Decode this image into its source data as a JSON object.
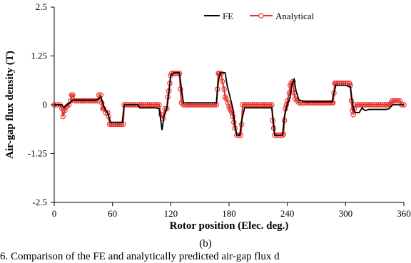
{
  "panel_label": "(b)",
  "caption": "6. Comparison of the FE and analytically predicted air-gap flux d",
  "chart_data": {
    "type": "line",
    "title": "",
    "xlabel": "Rotor position (Elec. deg.)",
    "ylabel": "Air-gap flux density (T)",
    "xlim": [
      0,
      360
    ],
    "ylim": [
      -2.5,
      2.5
    ],
    "xticks": [
      "0",
      "60",
      "120",
      "180",
      "240",
      "300",
      "360"
    ],
    "yticks": [
      "-2.5",
      "-1.25",
      "0",
      "1.25",
      "2.5"
    ],
    "grid": false,
    "legend_position": "top-right",
    "series": [
      {
        "name": "FE",
        "color": "#000000",
        "marker": "none",
        "points": [
          [
            0,
            0
          ],
          [
            8,
            0
          ],
          [
            10,
            -0.08
          ],
          [
            12,
            -0.02
          ],
          [
            16,
            0.05
          ],
          [
            19,
            0.12
          ],
          [
            22,
            0.12
          ],
          [
            27,
            0.12
          ],
          [
            31,
            0.12
          ],
          [
            35,
            0.12
          ],
          [
            39,
            0.12
          ],
          [
            43,
            0.12
          ],
          [
            46,
            0.15
          ],
          [
            48,
            0.2
          ],
          [
            50,
            0.05
          ],
          [
            52,
            -0.1
          ],
          [
            55,
            -0.2
          ],
          [
            58,
            -0.45
          ],
          [
            62,
            -0.45
          ],
          [
            66,
            -0.45
          ],
          [
            70,
            -0.45
          ],
          [
            72,
            0
          ],
          [
            78,
            0
          ],
          [
            82,
            0
          ],
          [
            86,
            0
          ],
          [
            88,
            -0.08
          ],
          [
            92,
            -0.08
          ],
          [
            96,
            -0.08
          ],
          [
            100,
            -0.08
          ],
          [
            104,
            -0.08
          ],
          [
            108,
            -0.1
          ],
          [
            110,
            -0.45
          ],
          [
            111,
            -0.65
          ],
          [
            113,
            -0.3
          ],
          [
            116,
            -0.1
          ],
          [
            118,
            0.3
          ],
          [
            120,
            0.75
          ],
          [
            123,
            0.82
          ],
          [
            126,
            0.82
          ],
          [
            129,
            0.82
          ],
          [
            131,
            0.4
          ],
          [
            133,
            0.05
          ],
          [
            138,
            0.05
          ],
          [
            145,
            0.05
          ],
          [
            152,
            0.05
          ],
          [
            160,
            0.05
          ],
          [
            167,
            0.05
          ],
          [
            169,
            0.6
          ],
          [
            171,
            0.82
          ],
          [
            176,
            0.82
          ],
          [
            178,
            0.5
          ],
          [
            181,
            0.2
          ],
          [
            184,
            -0.1
          ],
          [
            186,
            -0.5
          ],
          [
            188,
            -0.78
          ],
          [
            191,
            -0.78
          ],
          [
            193,
            -0.4
          ],
          [
            196,
            -0.08
          ],
          [
            203,
            -0.08
          ],
          [
            210,
            -0.08
          ],
          [
            217,
            -0.08
          ],
          [
            224,
            -0.08
          ],
          [
            226,
            -0.5
          ],
          [
            227,
            -0.78
          ],
          [
            233,
            -0.78
          ],
          [
            235,
            -0.78
          ],
          [
            237,
            -0.3
          ],
          [
            240,
            0
          ],
          [
            243,
            0.2
          ],
          [
            245,
            0.55
          ],
          [
            247,
            0.65
          ],
          [
            249,
            0.35
          ],
          [
            252,
            0.12
          ],
          [
            258,
            0.08
          ],
          [
            265,
            0.08
          ],
          [
            272,
            0.08
          ],
          [
            279,
            0.08
          ],
          [
            286,
            0.08
          ],
          [
            288,
            0.3
          ],
          [
            290,
            0.5
          ],
          [
            295,
            0.5
          ],
          [
            300,
            0.5
          ],
          [
            305,
            0.45
          ],
          [
            307,
            0.05
          ],
          [
            308,
            -0.1
          ],
          [
            310,
            -0.2
          ],
          [
            314,
            -0.2
          ],
          [
            317,
            -0.08
          ],
          [
            320,
            -0.15
          ],
          [
            324,
            -0.12
          ],
          [
            328,
            -0.12
          ],
          [
            333,
            -0.12
          ],
          [
            337,
            -0.12
          ],
          [
            341,
            -0.12
          ],
          [
            345,
            -0.1
          ],
          [
            348,
            0
          ],
          [
            352,
            0
          ],
          [
            356,
            0
          ],
          [
            360,
            0
          ]
        ]
      },
      {
        "name": "Analytical",
        "color": "#e8302a",
        "marker": "circle",
        "points": [
          [
            0,
            0
          ],
          [
            3,
            0
          ],
          [
            6,
            0
          ],
          [
            8,
            -0.1
          ],
          [
            9,
            -0.3
          ],
          [
            11,
            -0.15
          ],
          [
            13,
            -0.05
          ],
          [
            15,
            0
          ],
          [
            17,
            0.1
          ],
          [
            18,
            0.25
          ],
          [
            19,
            0.25
          ],
          [
            21,
            0.1
          ],
          [
            23,
            0.1
          ],
          [
            25,
            0.1
          ],
          [
            27,
            0.1
          ],
          [
            29,
            0.1
          ],
          [
            31,
            0.1
          ],
          [
            33,
            0.1
          ],
          [
            35,
            0.1
          ],
          [
            37,
            0.1
          ],
          [
            39,
            0.1
          ],
          [
            41,
            0.1
          ],
          [
            43,
            0.1
          ],
          [
            45,
            0.1
          ],
          [
            46,
            0.25
          ],
          [
            48,
            0.25
          ],
          [
            49,
            0.05
          ],
          [
            50,
            -0.1
          ],
          [
            51,
            -0.1
          ],
          [
            53,
            -0.2
          ],
          [
            55,
            -0.2
          ],
          [
            56,
            -0.3
          ],
          [
            57,
            -0.5
          ],
          [
            59,
            -0.5
          ],
          [
            61,
            -0.5
          ],
          [
            63,
            -0.5
          ],
          [
            65,
            -0.5
          ],
          [
            67,
            -0.5
          ],
          [
            69,
            -0.5
          ],
          [
            71,
            -0.5
          ],
          [
            72,
            0
          ],
          [
            74,
            0
          ],
          [
            76,
            0
          ],
          [
            78,
            0
          ],
          [
            80,
            0
          ],
          [
            82,
            0
          ],
          [
            84,
            0
          ],
          [
            86,
            0
          ],
          [
            88,
            0
          ],
          [
            90,
            0
          ],
          [
            92,
            0
          ],
          [
            94,
            0
          ],
          [
            96,
            0
          ],
          [
            98,
            0
          ],
          [
            100,
            0
          ],
          [
            102,
            0
          ],
          [
            104,
            0
          ],
          [
            106,
            0
          ],
          [
            108,
            0
          ],
          [
            110,
            -0.25
          ],
          [
            112,
            -0.35
          ],
          [
            114,
            -0.1
          ],
          [
            116,
            -0.1
          ],
          [
            117,
            0.2
          ],
          [
            118,
            0.35
          ],
          [
            119,
            0.55
          ],
          [
            120,
            0.75
          ],
          [
            121,
            0.8
          ],
          [
            123,
            0.8
          ],
          [
            125,
            0.8
          ],
          [
            127,
            0.8
          ],
          [
            129,
            0.8
          ],
          [
            130,
            0.4
          ],
          [
            131,
            0.05
          ],
          [
            133,
            0
          ],
          [
            135,
            0
          ],
          [
            137,
            0
          ],
          [
            139,
            0
          ],
          [
            141,
            0
          ],
          [
            143,
            0
          ],
          [
            145,
            0
          ],
          [
            147,
            0
          ],
          [
            149,
            0
          ],
          [
            151,
            0
          ],
          [
            153,
            0
          ],
          [
            155,
            0
          ],
          [
            157,
            0
          ],
          [
            159,
            0
          ],
          [
            161,
            0
          ],
          [
            163,
            0
          ],
          [
            165,
            0
          ],
          [
            167,
            0
          ],
          [
            168,
            0.4
          ],
          [
            169,
            0.8
          ],
          [
            170,
            0.8
          ],
          [
            172,
            0.8
          ],
          [
            173,
            0.6
          ],
          [
            175,
            0.4
          ],
          [
            176,
            0.2
          ],
          [
            177,
            0.15
          ],
          [
            179,
            0.05
          ],
          [
            180,
            -0.05
          ],
          [
            181,
            -0.1
          ],
          [
            182,
            -0.15
          ],
          [
            183,
            -0.2
          ],
          [
            184,
            -0.3
          ],
          [
            185,
            -0.45
          ],
          [
            186,
            -0.6
          ],
          [
            188,
            -0.78
          ],
          [
            190,
            -0.78
          ],
          [
            192,
            -0.78
          ],
          [
            193,
            -0.5
          ],
          [
            194,
            0
          ],
          [
            196,
            0
          ],
          [
            198,
            0
          ],
          [
            200,
            0
          ],
          [
            202,
            0
          ],
          [
            204,
            0
          ],
          [
            206,
            0
          ],
          [
            208,
            0
          ],
          [
            210,
            0
          ],
          [
            212,
            0
          ],
          [
            214,
            0
          ],
          [
            216,
            0
          ],
          [
            218,
            0
          ],
          [
            220,
            0
          ],
          [
            222,
            0
          ],
          [
            224,
            0
          ],
          [
            225,
            -0.4
          ],
          [
            226,
            -0.6
          ],
          [
            227,
            -0.78
          ],
          [
            229,
            -0.78
          ],
          [
            231,
            -0.78
          ],
          [
            233,
            -0.78
          ],
          [
            235,
            -0.78
          ],
          [
            236,
            -0.75
          ],
          [
            237,
            -0.4
          ],
          [
            238,
            -0.1
          ],
          [
            239,
            0
          ],
          [
            240,
            0.1
          ],
          [
            242,
            0.3
          ],
          [
            243,
            0.5
          ],
          [
            244,
            0.55
          ],
          [
            246,
            0.6
          ],
          [
            247,
            0.3
          ],
          [
            248,
            0.15
          ],
          [
            250,
            0.1
          ],
          [
            252,
            0.05
          ],
          [
            254,
            0.05
          ],
          [
            256,
            0.05
          ],
          [
            258,
            0.05
          ],
          [
            260,
            0.05
          ],
          [
            262,
            0.05
          ],
          [
            264,
            0.05
          ],
          [
            266,
            0.05
          ],
          [
            268,
            0.05
          ],
          [
            270,
            0.05
          ],
          [
            272,
            0.05
          ],
          [
            274,
            0.05
          ],
          [
            276,
            0.05
          ],
          [
            278,
            0.05
          ],
          [
            280,
            0.05
          ],
          [
            282,
            0.05
          ],
          [
            284,
            0.05
          ],
          [
            286,
            0.05
          ],
          [
            287,
            0.05
          ],
          [
            288,
            0.3
          ],
          [
            289,
            0.55
          ],
          [
            290,
            0.55
          ],
          [
            292,
            0.55
          ],
          [
            294,
            0.55
          ],
          [
            296,
            0.55
          ],
          [
            298,
            0.55
          ],
          [
            300,
            0.55
          ],
          [
            302,
            0.55
          ],
          [
            304,
            0.55
          ],
          [
            305,
            0.5
          ],
          [
            306,
            0.1
          ],
          [
            307,
            -0.15
          ],
          [
            308,
            -0.25
          ],
          [
            309,
            -0.1
          ],
          [
            310,
            0
          ],
          [
            312,
            0
          ],
          [
            314,
            0
          ],
          [
            316,
            0
          ],
          [
            318,
            0
          ],
          [
            320,
            0
          ],
          [
            322,
            0
          ],
          [
            324,
            0
          ],
          [
            326,
            0
          ],
          [
            328,
            0
          ],
          [
            330,
            0
          ],
          [
            332,
            0
          ],
          [
            334,
            0
          ],
          [
            336,
            0
          ],
          [
            338,
            0
          ],
          [
            340,
            0
          ],
          [
            342,
            0
          ],
          [
            344,
            0
          ],
          [
            346,
            0
          ],
          [
            347,
            0.05
          ],
          [
            348,
            0.1
          ],
          [
            350,
            0.1
          ],
          [
            352,
            0.1
          ],
          [
            354,
            0.1
          ],
          [
            356,
            0.1
          ],
          [
            358,
            0
          ],
          [
            360,
            0
          ]
        ]
      }
    ]
  }
}
